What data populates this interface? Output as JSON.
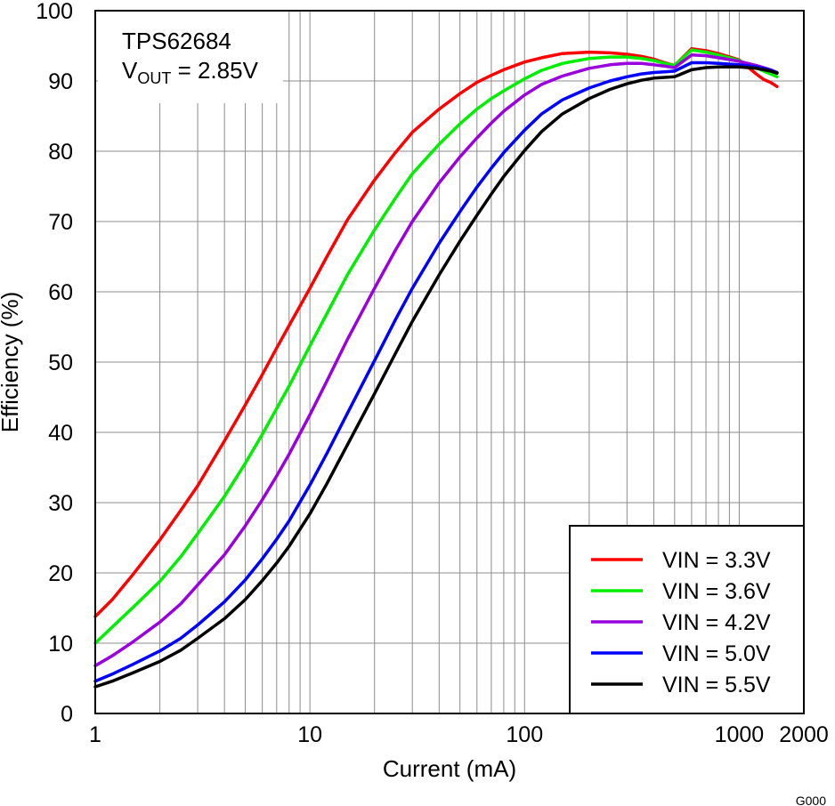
{
  "chart_data": {
    "type": "line",
    "xlabel": "Current (mA)",
    "ylabel": "Efficiency (%)",
    "x_scale": "log",
    "xlim": [
      1,
      2000
    ],
    "ylim": [
      0,
      100
    ],
    "x_ticks": [
      1,
      10,
      100,
      1000,
      2000
    ],
    "x_tick_labels": [
      "1",
      "10",
      "100",
      "1000",
      "2000"
    ],
    "y_ticks": [
      0,
      10,
      20,
      30,
      40,
      50,
      60,
      70,
      80,
      90,
      100
    ],
    "grid": true,
    "legend_position": "bottom-right",
    "annotation": {
      "device": "TPS62684",
      "vout_main": "V",
      "vout_sub": "OUT",
      "vout_value": " = 2.85V"
    },
    "figure_code": "G000",
    "x": [
      1,
      1.2,
      1.5,
      2,
      2.5,
      3,
      4,
      5,
      6,
      7,
      8,
      10,
      12,
      15,
      20,
      25,
      30,
      40,
      50,
      60,
      70,
      80,
      100,
      120,
      150,
      200,
      250,
      300,
      350,
      400,
      450,
      500,
      600,
      700,
      800,
      1000,
      1200,
      1300,
      1400,
      1500
    ],
    "series": [
      {
        "name": "VIN = 3.3V",
        "color": "#ff0000",
        "values": [
          13.8,
          16.2,
          19.8,
          24.7,
          28.9,
          32.4,
          38.8,
          43.9,
          48.2,
          52.0,
          55.2,
          60.5,
          65.0,
          70.3,
          75.9,
          79.8,
          82.7,
          86.0,
          88.2,
          89.8,
          90.8,
          91.6,
          92.7,
          93.3,
          93.9,
          94.1,
          94.0,
          93.8,
          93.5,
          93.1,
          92.6,
          92.2,
          94.6,
          94.3,
          93.9,
          93.0,
          91.0,
          90.2,
          89.8,
          89.2
        ]
      },
      {
        "name": "VIN = 3.6V",
        "color": "#00ee00",
        "values": [
          10.0,
          12.3,
          15.1,
          18.8,
          22.3,
          25.6,
          30.9,
          35.6,
          39.7,
          43.4,
          46.6,
          52.3,
          56.9,
          62.5,
          68.8,
          73.3,
          76.8,
          81.0,
          83.9,
          86.0,
          87.5,
          88.6,
          90.3,
          91.5,
          92.5,
          93.2,
          93.4,
          93.4,
          93.2,
          92.9,
          92.5,
          92.2,
          94.4,
          94.1,
          93.7,
          92.9,
          91.9,
          91.4,
          91.0,
          90.6
        ]
      },
      {
        "name": "VIN = 4.2V",
        "color": "#9900dd",
        "values": [
          6.8,
          8.2,
          10.2,
          13.0,
          15.6,
          18.3,
          22.6,
          26.7,
          30.4,
          33.8,
          36.9,
          42.5,
          47.3,
          53.3,
          60.5,
          65.9,
          70.0,
          75.5,
          79.2,
          81.9,
          84.0,
          85.7,
          88.0,
          89.5,
          90.7,
          91.8,
          92.3,
          92.5,
          92.5,
          92.3,
          92.1,
          91.9,
          93.7,
          93.6,
          93.3,
          92.8,
          92.2,
          91.9,
          91.6,
          91.2
        ]
      },
      {
        "name": "VIN = 5.0V",
        "color": "#0000ff",
        "values": [
          4.6,
          5.6,
          7.0,
          8.9,
          10.7,
          12.6,
          15.9,
          19.0,
          22.0,
          24.8,
          27.4,
          32.5,
          37.0,
          42.8,
          50.2,
          56.0,
          60.5,
          66.9,
          71.4,
          74.9,
          77.6,
          79.8,
          83.0,
          85.3,
          87.3,
          89.0,
          90.0,
          90.6,
          91.0,
          91.2,
          91.3,
          91.4,
          92.6,
          92.6,
          92.5,
          92.3,
          92.0,
          91.8,
          91.5,
          91.2
        ]
      },
      {
        "name": "VIN = 5.5V",
        "color": "#000000",
        "values": [
          3.8,
          4.6,
          5.8,
          7.4,
          9.0,
          10.7,
          13.5,
          16.2,
          18.9,
          21.4,
          23.8,
          28.4,
          32.7,
          38.3,
          45.5,
          51.2,
          55.8,
          62.4,
          67.2,
          70.9,
          73.9,
          76.4,
          80.1,
          82.8,
          85.3,
          87.5,
          88.8,
          89.6,
          90.1,
          90.4,
          90.5,
          90.6,
          91.6,
          91.9,
          92.0,
          92.0,
          91.8,
          91.6,
          91.4,
          91.1
        ]
      }
    ]
  }
}
